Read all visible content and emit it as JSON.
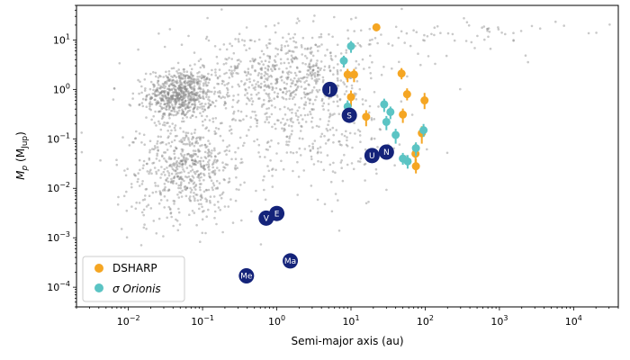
{
  "chart_data": {
    "type": "scatter",
    "xscale": "log",
    "yscale": "log",
    "xlim": [
      0.002,
      40000
    ],
    "ylim": [
      4e-05,
      50
    ],
    "xlabel": "Semi-major axis (au)",
    "ylabel_main": "M",
    "ylabel_sub": "p",
    "ylabel_unit_open": " (M",
    "ylabel_unit_sub": "Jup",
    "ylabel_unit_close": ")",
    "x_ticks": [
      {
        "value": 0.01,
        "base": "10",
        "exp": "−2"
      },
      {
        "value": 0.1,
        "base": "10",
        "exp": "−1"
      },
      {
        "value": 1,
        "base": "10",
        "exp": "0"
      },
      {
        "value": 10,
        "base": "10",
        "exp": "1"
      },
      {
        "value": 100,
        "base": "10",
        "exp": "2"
      },
      {
        "value": 1000,
        "base": "10",
        "exp": "3"
      },
      {
        "value": 10000,
        "base": "10",
        "exp": "4"
      }
    ],
    "y_ticks": [
      {
        "value": 0.0001,
        "base": "10",
        "exp": "−4"
      },
      {
        "value": 0.001,
        "base": "10",
        "exp": "−3"
      },
      {
        "value": 0.01,
        "base": "10",
        "exp": "−2"
      },
      {
        "value": 0.1,
        "base": "10",
        "exp": "−1"
      },
      {
        "value": 1,
        "base": "10",
        "exp": "0"
      },
      {
        "value": 10,
        "base": "10",
        "exp": "1"
      }
    ],
    "background_population": {
      "name": "Known exoplanets",
      "color": "#888888",
      "note": "Gray scatter cloud of known exoplanets (approximate distribution)",
      "clusters": [
        {
          "x_center": 0.05,
          "y_center": 0.8,
          "x_spread": 0.22,
          "y_spread": 0.25,
          "n": 650
        },
        {
          "x_center": 0.06,
          "y_center": 0.03,
          "x_spread": 0.3,
          "y_spread": 0.4,
          "n": 420
        },
        {
          "x_center": 1.5,
          "y_center": 2.0,
          "x_spread": 0.55,
          "y_spread": 0.45,
          "n": 520
        },
        {
          "x_center": 0.05,
          "y_center": 0.006,
          "x_spread": 0.45,
          "y_spread": 0.35,
          "n": 120
        },
        {
          "x_center": 3.0,
          "y_center": 0.15,
          "x_spread": 0.5,
          "y_spread": 0.6,
          "n": 160
        },
        {
          "x_center": 300,
          "y_center": 12,
          "x_spread": 0.7,
          "y_spread": 0.2,
          "n": 70
        },
        {
          "x_center": 0.5,
          "y_center": 0.3,
          "x_spread": 1.0,
          "y_spread": 0.9,
          "n": 300
        }
      ]
    },
    "series": [
      {
        "name": "DSHARP",
        "color": "#f5a623",
        "points": [
          {
            "x": 22,
            "y": 18,
            "yerr": [
              3,
              3
            ]
          },
          {
            "x": 9,
            "y": 2.0,
            "yerr": [
              0.6,
              0.6
            ]
          },
          {
            "x": 11,
            "y": 2.0,
            "yerr": [
              0.6,
              0.6
            ]
          },
          {
            "x": 48,
            "y": 2.1,
            "yerr": [
              0.5,
              0.6
            ]
          },
          {
            "x": 10,
            "y": 0.7,
            "yerr": [
              0.25,
              0.25
            ]
          },
          {
            "x": 57,
            "y": 0.8,
            "yerr": [
              0.2,
              0.25
            ]
          },
          {
            "x": 98,
            "y": 0.6,
            "yerr": [
              0.2,
              0.25
            ]
          },
          {
            "x": 16,
            "y": 0.28,
            "yerr": [
              0.1,
              0.1
            ]
          },
          {
            "x": 50,
            "y": 0.31,
            "yerr": [
              0.1,
              0.1
            ]
          },
          {
            "x": 90,
            "y": 0.13,
            "yerr": [
              0.05,
              0.05
            ]
          },
          {
            "x": 74,
            "y": 0.05,
            "yerr": [
              0.02,
              0.03
            ]
          },
          {
            "x": 75,
            "y": 0.028,
            "yerr": [
              0.008,
              0.012
            ]
          }
        ]
      },
      {
        "name": "σ Orionis",
        "color": "#5bc4c4",
        "points": [
          {
            "x": 10,
            "y": 7.5,
            "yerr": [
              2.0,
              2.0
            ]
          },
          {
            "x": 8,
            "y": 3.8,
            "yerr": [
              1.0,
              1.0
            ]
          },
          {
            "x": 9,
            "y": 0.45,
            "yerr": [
              0.15,
              0.15
            ]
          },
          {
            "x": 28,
            "y": 0.5,
            "yerr": [
              0.15,
              0.15
            ]
          },
          {
            "x": 34,
            "y": 0.35,
            "yerr": [
              0.1,
              0.1
            ]
          },
          {
            "x": 30,
            "y": 0.22,
            "yerr": [
              0.07,
              0.07
            ]
          },
          {
            "x": 40,
            "y": 0.12,
            "yerr": [
              0.04,
              0.04
            ]
          },
          {
            "x": 95,
            "y": 0.15,
            "yerr": [
              0.04,
              0.05
            ]
          },
          {
            "x": 75,
            "y": 0.065,
            "yerr": [
              0.02,
              0.02
            ]
          },
          {
            "x": 50,
            "y": 0.04,
            "yerr": [
              0.01,
              0.012
            ]
          },
          {
            "x": 58,
            "y": 0.035,
            "yerr": [
              0.01,
              0.012
            ]
          }
        ]
      }
    ],
    "solar_system": {
      "color": "#14237a",
      "planets": [
        {
          "label": "Me",
          "x": 0.39,
          "y": 0.00017
        },
        {
          "label": "V",
          "x": 0.72,
          "y": 0.0025
        },
        {
          "label": "E",
          "x": 1.0,
          "y": 0.0031
        },
        {
          "label": "Ma",
          "x": 1.52,
          "y": 0.00034
        },
        {
          "label": "J",
          "x": 5.2,
          "y": 1.0
        },
        {
          "label": "S",
          "x": 9.5,
          "y": 0.3
        },
        {
          "label": "U",
          "x": 19.2,
          "y": 0.046
        },
        {
          "label": "N",
          "x": 30.0,
          "y": 0.054
        }
      ]
    },
    "legend": {
      "position": "lower-left",
      "entries": [
        "DSHARP",
        "σ Orionis"
      ]
    }
  }
}
